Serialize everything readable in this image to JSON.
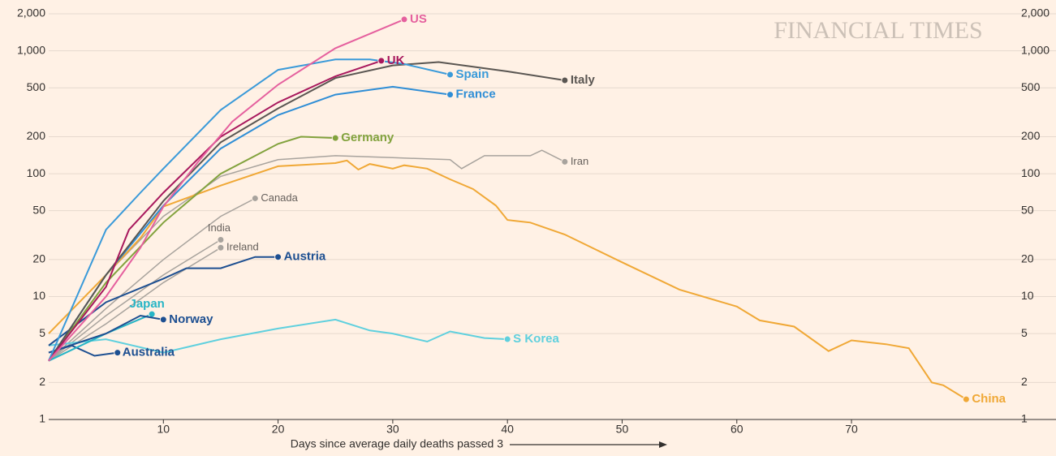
{
  "chart_data": {
    "type": "line",
    "watermark": "FINANCIAL TIMES",
    "x_label": "Days since average daily deaths passed 3",
    "xlim": [
      0,
      85
    ],
    "xticks": [
      10,
      20,
      30,
      40,
      50,
      60,
      70
    ],
    "ylim": [
      1,
      2000
    ],
    "log_y": true,
    "grid": true,
    "yticks": [
      1,
      2,
      5,
      10,
      20,
      50,
      100,
      200,
      500,
      {
        "value": 1000,
        "label": "1,000"
      },
      {
        "value": 2000,
        "label": "2,000"
      }
    ],
    "series": [
      {
        "name": "Iran",
        "color": "#a8a39d",
        "x": [
          0,
          5,
          10,
          15,
          20,
          25,
          30,
          35,
          36,
          38,
          42,
          43,
          45
        ],
        "values": [
          5,
          15,
          45,
          95,
          130,
          140,
          135,
          130,
          110,
          140,
          140,
          155,
          125
        ]
      },
      {
        "name": "Canada",
        "color": "#a8a39d",
        "x": [
          0,
          5,
          10,
          15,
          18
        ],
        "values": [
          3,
          8,
          20,
          45,
          63
        ]
      },
      {
        "name": "India",
        "color": "#a8a39d",
        "x": [
          0,
          5,
          10,
          15
        ],
        "values": [
          3,
          7,
          15,
          29
        ]
      },
      {
        "name": "Ireland",
        "color": "#a8a39d",
        "x": [
          0,
          5,
          10,
          15
        ],
        "values": [
          3,
          6,
          13,
          25
        ]
      },
      {
        "name": "China",
        "color": "#f0a836",
        "x": [
          0,
          5,
          8,
          10,
          15,
          20,
          25,
          26,
          27,
          28,
          30,
          31,
          33,
          35,
          37,
          39,
          40,
          42,
          45,
          50,
          55,
          60,
          62,
          65,
          68,
          70,
          73,
          75,
          77,
          78,
          80
        ],
        "values": [
          5,
          15,
          30,
          54,
          80,
          115,
          122,
          128,
          108,
          120,
          110,
          117,
          110,
          90,
          75,
          55,
          42,
          40,
          32,
          19,
          11.4,
          8.3,
          6.4,
          5.7,
          3.6,
          4.4,
          4.1,
          3.8,
          2,
          1.9,
          1.46
        ]
      },
      {
        "name": "S Korea",
        "color": "#5fd0de",
        "x": [
          0,
          5,
          10,
          15,
          20,
          25,
          28,
          30,
          33,
          35,
          38,
          40
        ],
        "values": [
          4,
          4.5,
          3.5,
          4.5,
          5.5,
          6.5,
          5.3,
          5,
          4.3,
          5.2,
          4.6,
          4.5
        ]
      },
      {
        "name": "Australia",
        "color": "#1d4f91",
        "x": [
          0,
          2,
          4,
          6
        ],
        "values": [
          3.5,
          4,
          3.3,
          3.5
        ]
      },
      {
        "name": "Japan",
        "color": "#27b5c6",
        "x": [
          0,
          5,
          7,
          9
        ],
        "values": [
          3,
          5,
          6,
          7.2
        ]
      },
      {
        "name": "Norway",
        "color": "#1d4f91",
        "x": [
          0,
          5,
          8,
          10
        ],
        "values": [
          3.5,
          5,
          7,
          6.5
        ]
      },
      {
        "name": "Austria",
        "color": "#1d4f91",
        "x": [
          0,
          5,
          10,
          12,
          15,
          18,
          20
        ],
        "values": [
          4,
          9,
          14,
          17,
          17,
          21,
          21
        ]
      },
      {
        "name": "Germany",
        "color": "#82a23d",
        "x": [
          0,
          5,
          10,
          15,
          20,
          22,
          25
        ],
        "values": [
          3,
          13,
          40,
          100,
          175,
          200,
          195
        ]
      },
      {
        "name": "France",
        "color": "#2f8ed6",
        "x": [
          0,
          5,
          10,
          15,
          20,
          25,
          30,
          35
        ],
        "values": [
          3,
          15,
          55,
          160,
          300,
          440,
          510,
          440
        ]
      },
      {
        "name": "Italy",
        "color": "#5a5652",
        "x": [
          0,
          5,
          10,
          15,
          20,
          25,
          30,
          34,
          40,
          45
        ],
        "values": [
          3,
          15,
          60,
          180,
          340,
          600,
          760,
          810,
          680,
          575
        ]
      },
      {
        "name": "Spain",
        "color": "#3a9ad9",
        "x": [
          0,
          5,
          8,
          10,
          15,
          20,
          25,
          28,
          31,
          35
        ],
        "values": [
          3,
          35,
          70,
          110,
          330,
          700,
          850,
          850,
          780,
          640
        ]
      },
      {
        "name": "UK",
        "color": "#a8185d",
        "x": [
          0,
          5,
          7,
          10,
          15,
          20,
          25,
          29
        ],
        "values": [
          3,
          12,
          35,
          70,
          200,
          380,
          620,
          830
        ]
      },
      {
        "name": "US",
        "color": "#e5609e",
        "x": [
          0,
          5,
          8,
          10,
          13,
          16,
          20,
          25,
          31
        ],
        "values": [
          3,
          10,
          25,
          54,
          124,
          265,
          530,
          1050,
          1800
        ]
      }
    ]
  }
}
